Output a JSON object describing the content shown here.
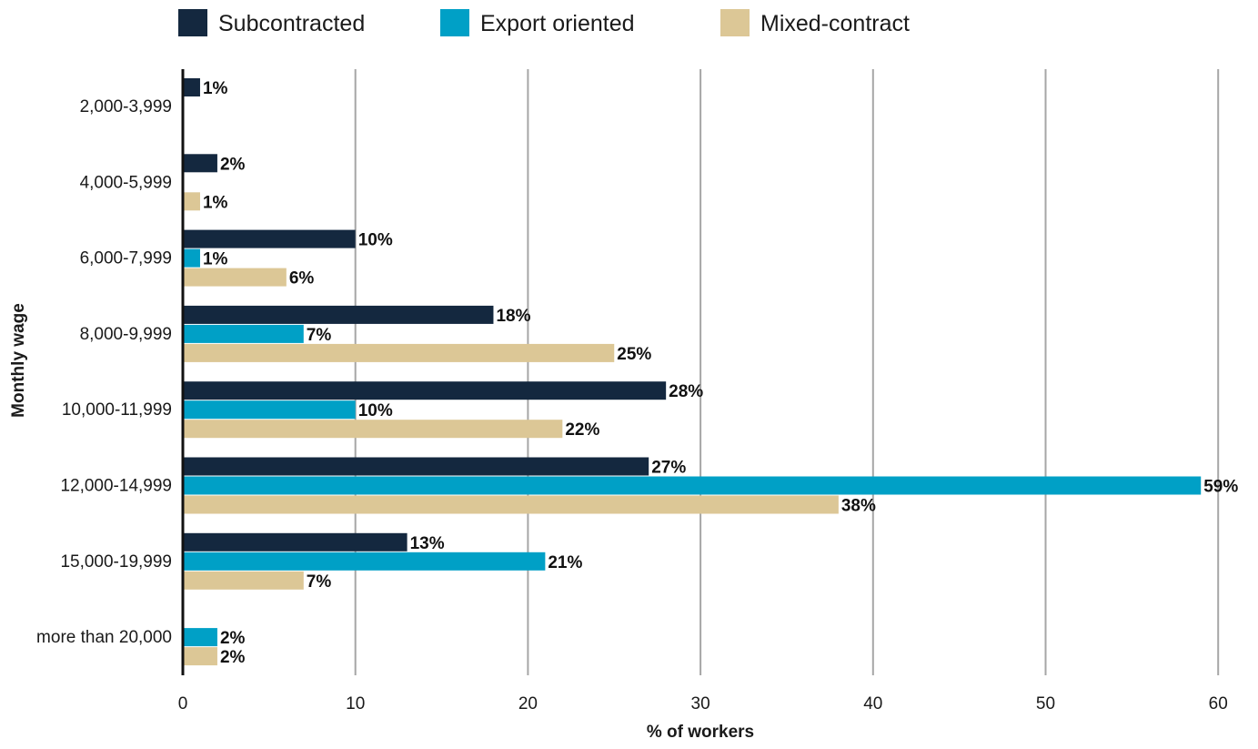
{
  "chart_data": {
    "type": "bar",
    "orientation": "horizontal",
    "categories": [
      "2,000-3,999",
      "4,000-5,999",
      "6,000-7,999",
      "8,000-9,999",
      "10,000-11,999",
      "12,000-14,999",
      "15,000-19,999",
      "more than 20,000"
    ],
    "series": [
      {
        "name": "Subcontracted",
        "color": "#14283f",
        "values": [
          1,
          2,
          10,
          18,
          28,
          27,
          13,
          null
        ],
        "labels": [
          "1%",
          "2%",
          "10%",
          "18%",
          "28%",
          "27%",
          "13%",
          ""
        ]
      },
      {
        "name": "Export oriented",
        "color": "#00a0c6",
        "values": [
          null,
          null,
          1,
          7,
          10,
          59,
          21,
          2
        ],
        "labels": [
          "",
          "",
          "1%",
          "7%",
          "10%",
          "59%",
          "21%",
          "2%"
        ]
      },
      {
        "name": "Mixed-contract",
        "color": "#dcc796",
        "values": [
          null,
          1,
          6,
          25,
          22,
          38,
          7,
          2
        ],
        "labels": [
          "",
          "1%",
          "6%",
          "25%",
          "22%",
          "38%",
          "7%",
          "2%"
        ]
      }
    ],
    "xticks": [
      "0",
      "10",
      "20",
      "30",
      "40",
      "50",
      "60"
    ],
    "xlim": [
      0,
      61
    ],
    "xlabel": "% of workers",
    "ylabel": "Monthly wage",
    "legend": "top",
    "grid": "vertical"
  }
}
